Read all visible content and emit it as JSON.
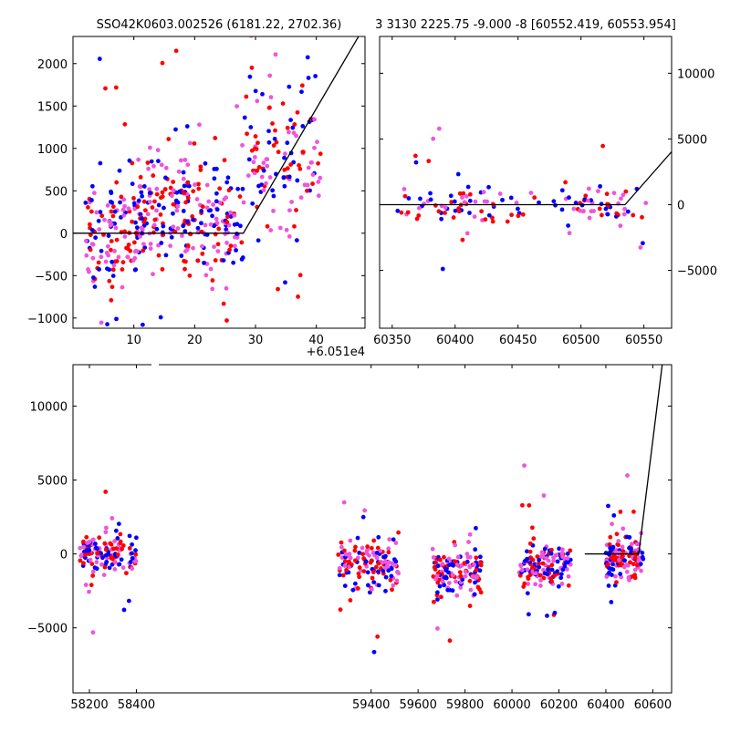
{
  "titles": {
    "left": "SSO42K0603.002526 (6181.22, 2702.36)",
    "right": "3 3130 2225.75 -9.000 -8 [60552.419, 60553.954]"
  },
  "colors": {
    "blue": "#0000ff",
    "red": "#ff0000",
    "magenta": "#ee55dd",
    "line": "#000000"
  },
  "chart_data": [
    {
      "id": "top-left",
      "type": "scatter",
      "title": "SSO42K0603.002526 (6181.22, 2702.36)",
      "offset_text": "+6.051e4",
      "xlim": [
        0,
        48
      ],
      "ylim": [
        -1120,
        2320
      ],
      "xticks": [
        10,
        20,
        30,
        40
      ],
      "yticks": [
        -1000,
        -500,
        0,
        500,
        1000,
        1500,
        2000
      ],
      "ytick_side": "left",
      "model_line": [
        [
          0,
          0
        ],
        [
          28,
          0
        ],
        [
          48,
          2450
        ]
      ],
      "clusters": [
        {
          "x": [
            2,
            11
          ],
          "y": [
            -250,
            250
          ],
          "ys": 420
        },
        {
          "x": [
            10,
            19
          ],
          "y": [
            200,
            500
          ],
          "ys": 420
        },
        {
          "x": [
            18,
            28
          ],
          "y": [
            0,
            300
          ],
          "ys": 460
        },
        {
          "x": [
            28,
            41
          ],
          "y": [
            500,
            1200
          ],
          "ys": 600
        }
      ]
    },
    {
      "id": "top-right",
      "type": "scatter",
      "title": "3 3130 2225.75 -9.000 -8 [60552.419, 60553.954]",
      "xlim": [
        60340,
        60572
      ],
      "ylim": [
        -9400,
        12800
      ],
      "xticks": [
        60350,
        60400,
        60450,
        60500,
        60550
      ],
      "yticks": [
        -5000,
        0,
        5000,
        10000
      ],
      "ytick_side": "right",
      "model_line": [
        [
          60340,
          0
        ],
        [
          60535,
          0
        ],
        [
          60580,
          4900
        ]
      ],
      "clusters": [
        {
          "x": [
            60352,
            60552
          ],
          "y": [
            -200,
            200
          ],
          "ys": 900
        }
      ]
    },
    {
      "id": "bottom",
      "type": "scatter",
      "xlim": [
        58130,
        60680
      ],
      "ylim": [
        -9400,
        12800
      ],
      "xticks": [
        58200,
        58400,
        59400,
        59600,
        59800,
        60000,
        60200,
        60400,
        60600
      ],
      "yticks": [
        -5000,
        0,
        5000,
        10000
      ],
      "ytick_side": "left",
      "model_line": [
        [
          60310,
          0
        ],
        [
          60540,
          0
        ],
        [
          60640,
          12800
        ]
      ],
      "gaps": [
        [
          58480,
          59330
        ]
      ],
      "clusters": [
        {
          "x": [
            58160,
            58400
          ],
          "y": [
            -300,
            300
          ],
          "ys": 900
        },
        {
          "x": [
            59260,
            59520
          ],
          "y": [
            -1100,
            -500
          ],
          "ys": 1100
        },
        {
          "x": [
            59660,
            59870
          ],
          "y": [
            -1500,
            -900
          ],
          "ys": 1100
        },
        {
          "x": [
            60030,
            60250
          ],
          "y": [
            -900,
            -300
          ],
          "ys": 1100
        },
        {
          "x": [
            60400,
            60560
          ],
          "y": [
            -600,
            0
          ],
          "ys": 1100
        }
      ]
    }
  ]
}
